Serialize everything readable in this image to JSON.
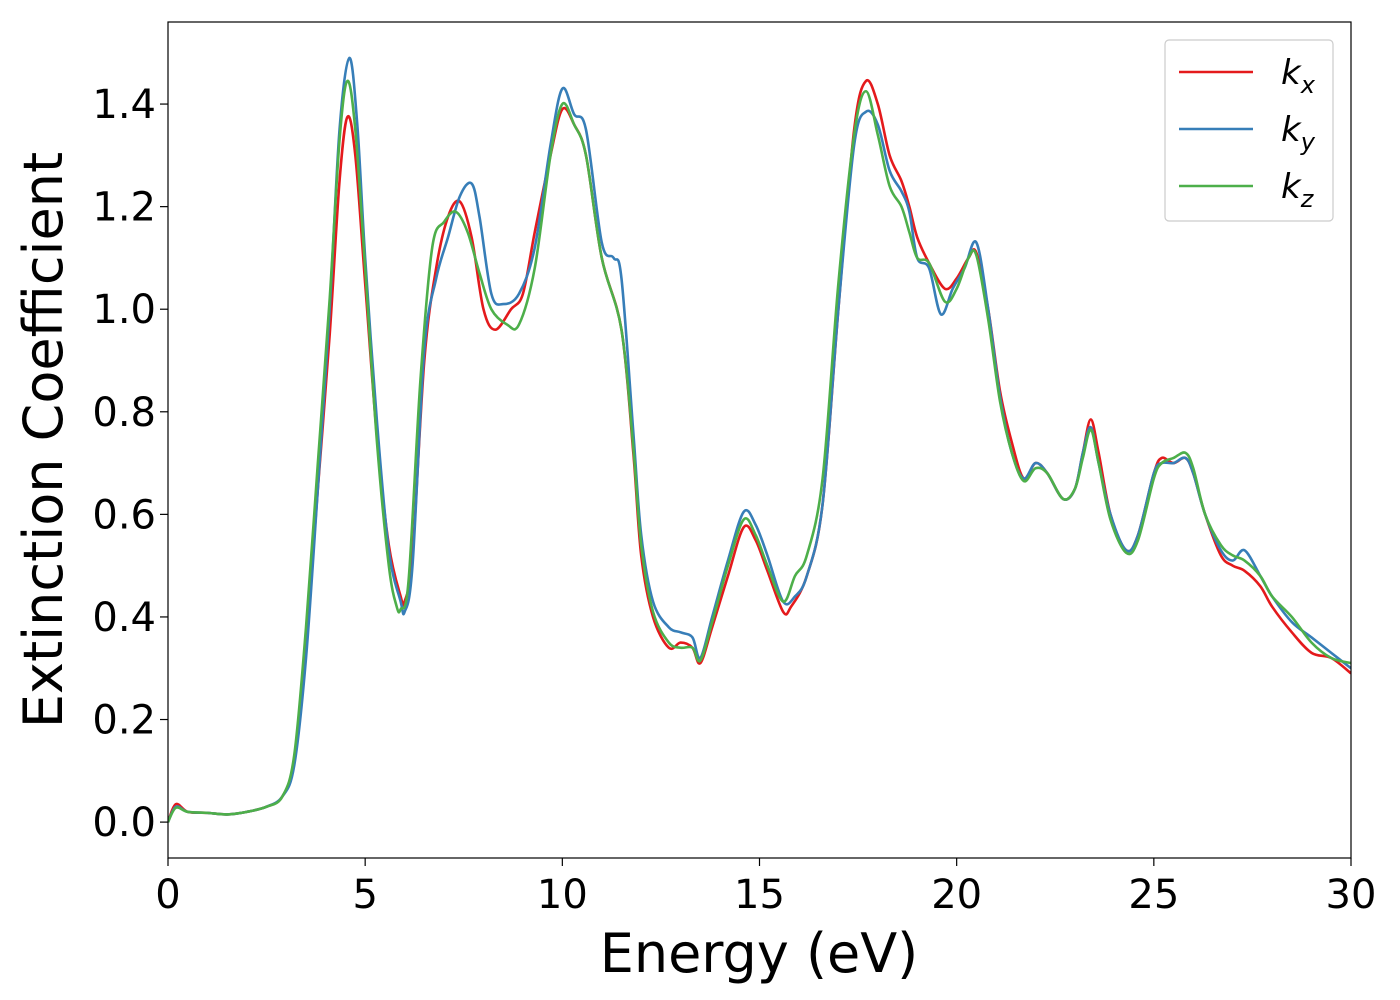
{
  "chart_data": {
    "type": "line",
    "title": "",
    "xlabel": "Energy (eV)",
    "ylabel": "Extinction Coefficient",
    "xlim": [
      0,
      30
    ],
    "ylim": [
      -0.07,
      1.56
    ],
    "xticks": [
      0,
      5,
      10,
      15,
      20,
      25,
      30
    ],
    "xtick_labels": [
      "0",
      "5",
      "10",
      "15",
      "20",
      "25",
      "30"
    ],
    "yticks": [
      0.0,
      0.2,
      0.4,
      0.6,
      0.8,
      1.0,
      1.2,
      1.4
    ],
    "ytick_labels": [
      "0.0",
      "0.2",
      "0.4",
      "0.6",
      "0.8",
      "1.0",
      "1.2",
      "1.4"
    ],
    "grid": false,
    "legend_position": "top-right",
    "series": [
      {
        "name": "k_x",
        "label_base": "k",
        "label_sub": "x",
        "color": "#e41a1c",
        "points": [
          [
            0,
            0.0
          ],
          [
            0.2,
            0.035
          ],
          [
            0.5,
            0.02
          ],
          [
            1.0,
            0.018
          ],
          [
            1.5,
            0.015
          ],
          [
            2.0,
            0.02
          ],
          [
            2.5,
            0.03
          ],
          [
            2.9,
            0.05
          ],
          [
            3.2,
            0.12
          ],
          [
            3.5,
            0.35
          ],
          [
            3.8,
            0.65
          ],
          [
            4.1,
            0.95
          ],
          [
            4.35,
            1.25
          ],
          [
            4.55,
            1.375
          ],
          [
            4.75,
            1.3
          ],
          [
            5.0,
            1.05
          ],
          [
            5.3,
            0.75
          ],
          [
            5.6,
            0.54
          ],
          [
            5.9,
            0.44
          ],
          [
            6.0,
            0.43
          ],
          [
            6.2,
            0.52
          ],
          [
            6.5,
            0.9
          ],
          [
            6.8,
            1.08
          ],
          [
            7.1,
            1.18
          ],
          [
            7.4,
            1.21
          ],
          [
            7.7,
            1.14
          ],
          [
            8.0,
            1.0
          ],
          [
            8.3,
            0.96
          ],
          [
            8.7,
            1.0
          ],
          [
            9.0,
            1.03
          ],
          [
            9.3,
            1.15
          ],
          [
            9.7,
            1.3
          ],
          [
            10.0,
            1.39
          ],
          [
            10.3,
            1.36
          ],
          [
            10.6,
            1.3
          ],
          [
            11.0,
            1.1
          ],
          [
            11.5,
            0.96
          ],
          [
            11.8,
            0.72
          ],
          [
            12.0,
            0.52
          ],
          [
            12.3,
            0.4
          ],
          [
            12.7,
            0.34
          ],
          [
            13.0,
            0.35
          ],
          [
            13.3,
            0.34
          ],
          [
            13.5,
            0.31
          ],
          [
            13.8,
            0.38
          ],
          [
            14.2,
            0.48
          ],
          [
            14.6,
            0.575
          ],
          [
            14.9,
            0.55
          ],
          [
            15.2,
            0.49
          ],
          [
            15.6,
            0.41
          ],
          [
            15.8,
            0.42
          ],
          [
            16.2,
            0.48
          ],
          [
            16.6,
            0.62
          ],
          [
            17.0,
            1.0
          ],
          [
            17.4,
            1.35
          ],
          [
            17.7,
            1.445
          ],
          [
            18.0,
            1.4
          ],
          [
            18.3,
            1.3
          ],
          [
            18.6,
            1.25
          ],
          [
            18.8,
            1.2
          ],
          [
            19.0,
            1.14
          ],
          [
            19.3,
            1.09
          ],
          [
            19.7,
            1.04
          ],
          [
            20.0,
            1.06
          ],
          [
            20.3,
            1.1
          ],
          [
            20.5,
            1.11
          ],
          [
            20.8,
            1.0
          ],
          [
            21.1,
            0.84
          ],
          [
            21.4,
            0.74
          ],
          [
            21.7,
            0.67
          ],
          [
            22.0,
            0.7
          ],
          [
            22.3,
            0.68
          ],
          [
            22.7,
            0.63
          ],
          [
            23.0,
            0.65
          ],
          [
            23.2,
            0.72
          ],
          [
            23.4,
            0.785
          ],
          [
            23.6,
            0.72
          ],
          [
            23.9,
            0.6
          ],
          [
            24.3,
            0.53
          ],
          [
            24.6,
            0.56
          ],
          [
            25.0,
            0.68
          ],
          [
            25.2,
            0.71
          ],
          [
            25.5,
            0.7
          ],
          [
            25.8,
            0.71
          ],
          [
            26.0,
            0.68
          ],
          [
            26.3,
            0.6
          ],
          [
            26.7,
            0.52
          ],
          [
            27.0,
            0.5
          ],
          [
            27.3,
            0.49
          ],
          [
            27.7,
            0.46
          ],
          [
            28.0,
            0.42
          ],
          [
            28.5,
            0.37
          ],
          [
            29.0,
            0.33
          ],
          [
            29.5,
            0.32
          ],
          [
            30.0,
            0.29
          ]
        ]
      },
      {
        "name": "k_y",
        "label_base": "k",
        "label_sub": "y",
        "color": "#377eb8",
        "points": [
          [
            0,
            0.0
          ],
          [
            0.2,
            0.03
          ],
          [
            0.5,
            0.02
          ],
          [
            1.0,
            0.018
          ],
          [
            1.5,
            0.015
          ],
          [
            2.0,
            0.02
          ],
          [
            2.5,
            0.03
          ],
          [
            2.9,
            0.05
          ],
          [
            3.2,
            0.11
          ],
          [
            3.5,
            0.32
          ],
          [
            3.8,
            0.65
          ],
          [
            4.1,
            1.0
          ],
          [
            4.35,
            1.35
          ],
          [
            4.6,
            1.49
          ],
          [
            4.8,
            1.36
          ],
          [
            5.0,
            1.1
          ],
          [
            5.3,
            0.78
          ],
          [
            5.6,
            0.53
          ],
          [
            5.9,
            0.43
          ],
          [
            6.0,
            0.41
          ],
          [
            6.2,
            0.5
          ],
          [
            6.5,
            0.92
          ],
          [
            6.8,
            1.06
          ],
          [
            7.1,
            1.14
          ],
          [
            7.4,
            1.22
          ],
          [
            7.7,
            1.245
          ],
          [
            7.9,
            1.18
          ],
          [
            8.2,
            1.03
          ],
          [
            8.5,
            1.01
          ],
          [
            8.9,
            1.03
          ],
          [
            9.3,
            1.12
          ],
          [
            9.7,
            1.32
          ],
          [
            10.0,
            1.43
          ],
          [
            10.3,
            1.38
          ],
          [
            10.6,
            1.35
          ],
          [
            11.0,
            1.13
          ],
          [
            11.3,
            1.1
          ],
          [
            11.5,
            1.06
          ],
          [
            11.8,
            0.76
          ],
          [
            12.0,
            0.56
          ],
          [
            12.3,
            0.43
          ],
          [
            12.7,
            0.38
          ],
          [
            13.0,
            0.37
          ],
          [
            13.3,
            0.36
          ],
          [
            13.5,
            0.32
          ],
          [
            13.8,
            0.4
          ],
          [
            14.2,
            0.51
          ],
          [
            14.6,
            0.605
          ],
          [
            14.9,
            0.58
          ],
          [
            15.2,
            0.52
          ],
          [
            15.6,
            0.43
          ],
          [
            15.9,
            0.44
          ],
          [
            16.2,
            0.48
          ],
          [
            16.6,
            0.62
          ],
          [
            17.0,
            1.0
          ],
          [
            17.4,
            1.32
          ],
          [
            17.7,
            1.385
          ],
          [
            18.0,
            1.36
          ],
          [
            18.3,
            1.27
          ],
          [
            18.6,
            1.23
          ],
          [
            18.8,
            1.19
          ],
          [
            19.0,
            1.1
          ],
          [
            19.3,
            1.08
          ],
          [
            19.6,
            0.99
          ],
          [
            19.9,
            1.04
          ],
          [
            20.2,
            1.08
          ],
          [
            20.5,
            1.13
          ],
          [
            20.8,
            1.0
          ],
          [
            21.1,
            0.83
          ],
          [
            21.4,
            0.72
          ],
          [
            21.7,
            0.67
          ],
          [
            22.0,
            0.7
          ],
          [
            22.3,
            0.68
          ],
          [
            22.7,
            0.63
          ],
          [
            23.0,
            0.65
          ],
          [
            23.2,
            0.72
          ],
          [
            23.4,
            0.77
          ],
          [
            23.6,
            0.7
          ],
          [
            23.9,
            0.6
          ],
          [
            24.3,
            0.53
          ],
          [
            24.6,
            0.56
          ],
          [
            25.0,
            0.68
          ],
          [
            25.2,
            0.7
          ],
          [
            25.5,
            0.7
          ],
          [
            25.8,
            0.71
          ],
          [
            26.0,
            0.68
          ],
          [
            26.3,
            0.6
          ],
          [
            26.7,
            0.53
          ],
          [
            27.0,
            0.51
          ],
          [
            27.3,
            0.53
          ],
          [
            27.7,
            0.48
          ],
          [
            28.0,
            0.44
          ],
          [
            28.5,
            0.39
          ],
          [
            29.0,
            0.36
          ],
          [
            29.5,
            0.33
          ],
          [
            30.0,
            0.3
          ]
        ]
      },
      {
        "name": "k_z",
        "label_base": "k",
        "label_sub": "z",
        "color": "#4daf4a",
        "points": [
          [
            0,
            0.0
          ],
          [
            0.2,
            0.028
          ],
          [
            0.5,
            0.02
          ],
          [
            1.0,
            0.018
          ],
          [
            1.5,
            0.015
          ],
          [
            2.0,
            0.02
          ],
          [
            2.5,
            0.03
          ],
          [
            2.9,
            0.05
          ],
          [
            3.2,
            0.13
          ],
          [
            3.5,
            0.38
          ],
          [
            3.8,
            0.7
          ],
          [
            4.1,
            1.02
          ],
          [
            4.35,
            1.33
          ],
          [
            4.55,
            1.445
          ],
          [
            4.75,
            1.35
          ],
          [
            5.0,
            1.08
          ],
          [
            5.3,
            0.74
          ],
          [
            5.6,
            0.5
          ],
          [
            5.8,
            0.42
          ],
          [
            5.9,
            0.415
          ],
          [
            6.1,
            0.47
          ],
          [
            6.4,
            0.86
          ],
          [
            6.7,
            1.12
          ],
          [
            7.0,
            1.17
          ],
          [
            7.3,
            1.19
          ],
          [
            7.6,
            1.15
          ],
          [
            7.9,
            1.07
          ],
          [
            8.2,
            1.0
          ],
          [
            8.6,
            0.97
          ],
          [
            8.9,
            0.97
          ],
          [
            9.3,
            1.08
          ],
          [
            9.7,
            1.3
          ],
          [
            10.0,
            1.4
          ],
          [
            10.3,
            1.36
          ],
          [
            10.6,
            1.3
          ],
          [
            11.0,
            1.1
          ],
          [
            11.5,
            0.96
          ],
          [
            11.8,
            0.73
          ],
          [
            12.0,
            0.54
          ],
          [
            12.3,
            0.41
          ],
          [
            12.7,
            0.35
          ],
          [
            13.0,
            0.34
          ],
          [
            13.3,
            0.34
          ],
          [
            13.5,
            0.315
          ],
          [
            13.8,
            0.39
          ],
          [
            14.2,
            0.5
          ],
          [
            14.6,
            0.59
          ],
          [
            14.9,
            0.56
          ],
          [
            15.2,
            0.5
          ],
          [
            15.6,
            0.43
          ],
          [
            15.9,
            0.48
          ],
          [
            16.2,
            0.52
          ],
          [
            16.6,
            0.67
          ],
          [
            17.0,
            1.05
          ],
          [
            17.4,
            1.34
          ],
          [
            17.7,
            1.425
          ],
          [
            18.0,
            1.34
          ],
          [
            18.3,
            1.24
          ],
          [
            18.6,
            1.2
          ],
          [
            18.8,
            1.15
          ],
          [
            19.0,
            1.1
          ],
          [
            19.3,
            1.09
          ],
          [
            19.7,
            1.015
          ],
          [
            20.0,
            1.04
          ],
          [
            20.3,
            1.1
          ],
          [
            20.5,
            1.105
          ],
          [
            20.8,
            0.98
          ],
          [
            21.1,
            0.82
          ],
          [
            21.4,
            0.72
          ],
          [
            21.7,
            0.665
          ],
          [
            22.0,
            0.69
          ],
          [
            22.3,
            0.68
          ],
          [
            22.7,
            0.63
          ],
          [
            23.0,
            0.65
          ],
          [
            23.2,
            0.71
          ],
          [
            23.4,
            0.765
          ],
          [
            23.6,
            0.7
          ],
          [
            23.9,
            0.59
          ],
          [
            24.3,
            0.525
          ],
          [
            24.6,
            0.55
          ],
          [
            25.0,
            0.67
          ],
          [
            25.2,
            0.7
          ],
          [
            25.5,
            0.71
          ],
          [
            25.8,
            0.72
          ],
          [
            26.0,
            0.69
          ],
          [
            26.3,
            0.6
          ],
          [
            26.7,
            0.54
          ],
          [
            27.0,
            0.52
          ],
          [
            27.3,
            0.51
          ],
          [
            27.7,
            0.48
          ],
          [
            28.0,
            0.44
          ],
          [
            28.5,
            0.4
          ],
          [
            29.0,
            0.35
          ],
          [
            29.5,
            0.32
          ],
          [
            30.0,
            0.31
          ]
        ]
      }
    ]
  }
}
